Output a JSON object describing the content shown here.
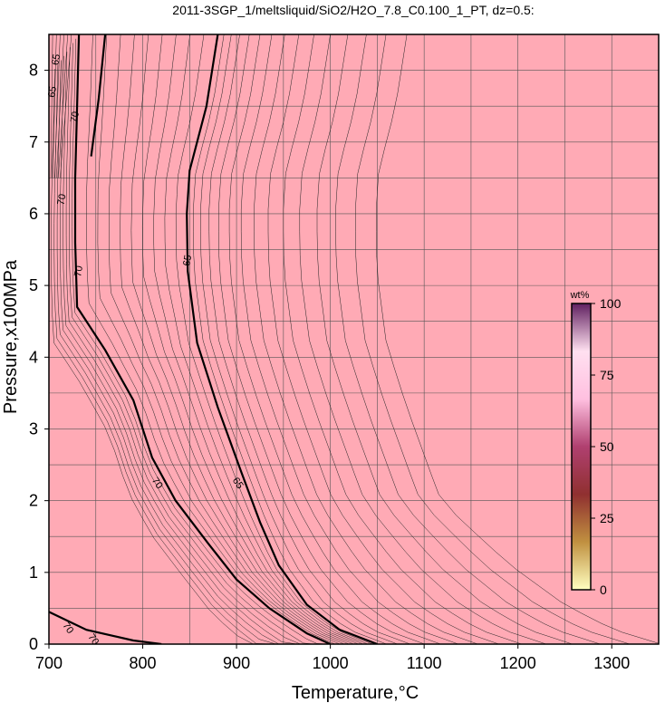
{
  "chart_data": {
    "type": "contour",
    "title": "2011-3SGP_1/meltsliquid/SiO2/H2O_7.8_C0.100_1_PT, dz=0.5:",
    "xlabel": "Temperature,°C",
    "ylabel": "Pressure,x100MPa",
    "xlim": [
      700,
      1350
    ],
    "ylim": [
      0,
      8.5
    ],
    "x_ticks": [
      "700",
      "800",
      "900",
      "1000",
      "1100",
      "1200",
      "1300"
    ],
    "y_ticks": [
      "0",
      "1",
      "2",
      "3",
      "4",
      "5",
      "6",
      "7",
      "8"
    ],
    "grid": true,
    "background_color": "#ffaab5",
    "contour_interval": 0.5,
    "major_contours": [
      {
        "level": 70,
        "label": "70",
        "points": [
          [
            732,
            8.5
          ],
          [
            730,
            7.5
          ],
          [
            728,
            6.5
          ],
          [
            728,
            5.6
          ],
          [
            730,
            4.7
          ],
          [
            760,
            4.1
          ],
          [
            790,
            3.4
          ],
          [
            810,
            2.6
          ],
          [
            835,
            2.0
          ],
          [
            870,
            1.4
          ],
          [
            900,
            0.9
          ],
          [
            935,
            0.5
          ],
          [
            975,
            0.15
          ],
          [
            1000,
            0.0
          ]
        ]
      },
      {
        "level": 65,
        "label": "65",
        "points": [
          [
            880,
            8.5
          ],
          [
            868,
            7.5
          ],
          [
            850,
            6.6
          ],
          [
            847,
            6.0
          ],
          [
            848,
            5.2
          ],
          [
            858,
            4.2
          ],
          [
            880,
            3.3
          ],
          [
            905,
            2.4
          ],
          [
            925,
            1.7
          ],
          [
            945,
            1.1
          ],
          [
            975,
            0.55
          ],
          [
            1010,
            0.2
          ],
          [
            1050,
            0.0
          ]
        ]
      },
      {
        "level": 70,
        "label": "70",
        "points": [
          [
            760,
            8.5
          ],
          [
            753,
            7.6
          ],
          [
            745,
            6.8
          ]
        ]
      },
      {
        "level": 70,
        "label": "70",
        "points": [
          [
            700,
            0.45
          ],
          [
            740,
            0.2
          ],
          [
            790,
            0.05
          ],
          [
            820,
            0.0
          ]
        ]
      }
    ],
    "contour_labels": [
      {
        "text": "65",
        "x": 707,
        "y": 8.15
      },
      {
        "text": "65",
        "x": 703,
        "y": 7.7
      },
      {
        "text": "70",
        "x": 727,
        "y": 7.35
      },
      {
        "text": "70",
        "x": 713,
        "y": 6.2
      },
      {
        "text": "70",
        "x": 731,
        "y": 5.2
      },
      {
        "text": "65",
        "x": 847,
        "y": 5.35
      },
      {
        "text": "70",
        "x": 816,
        "y": 2.25
      },
      {
        "text": "65",
        "x": 902,
        "y": 2.25
      },
      {
        "text": "70",
        "x": 721,
        "y": 0.23
      },
      {
        "text": "70",
        "x": 748,
        "y": 0.07
      }
    ],
    "colorbar": {
      "unit": "wt%",
      "min": 0,
      "max": 100,
      "ticks": [
        "0",
        "25",
        "50",
        "75",
        "100"
      ],
      "colors": [
        "#ffffc0",
        "#c09040",
        "#903030",
        "#b04070",
        "#ffc0e0",
        "#ffe0f0",
        "#602060"
      ]
    }
  }
}
